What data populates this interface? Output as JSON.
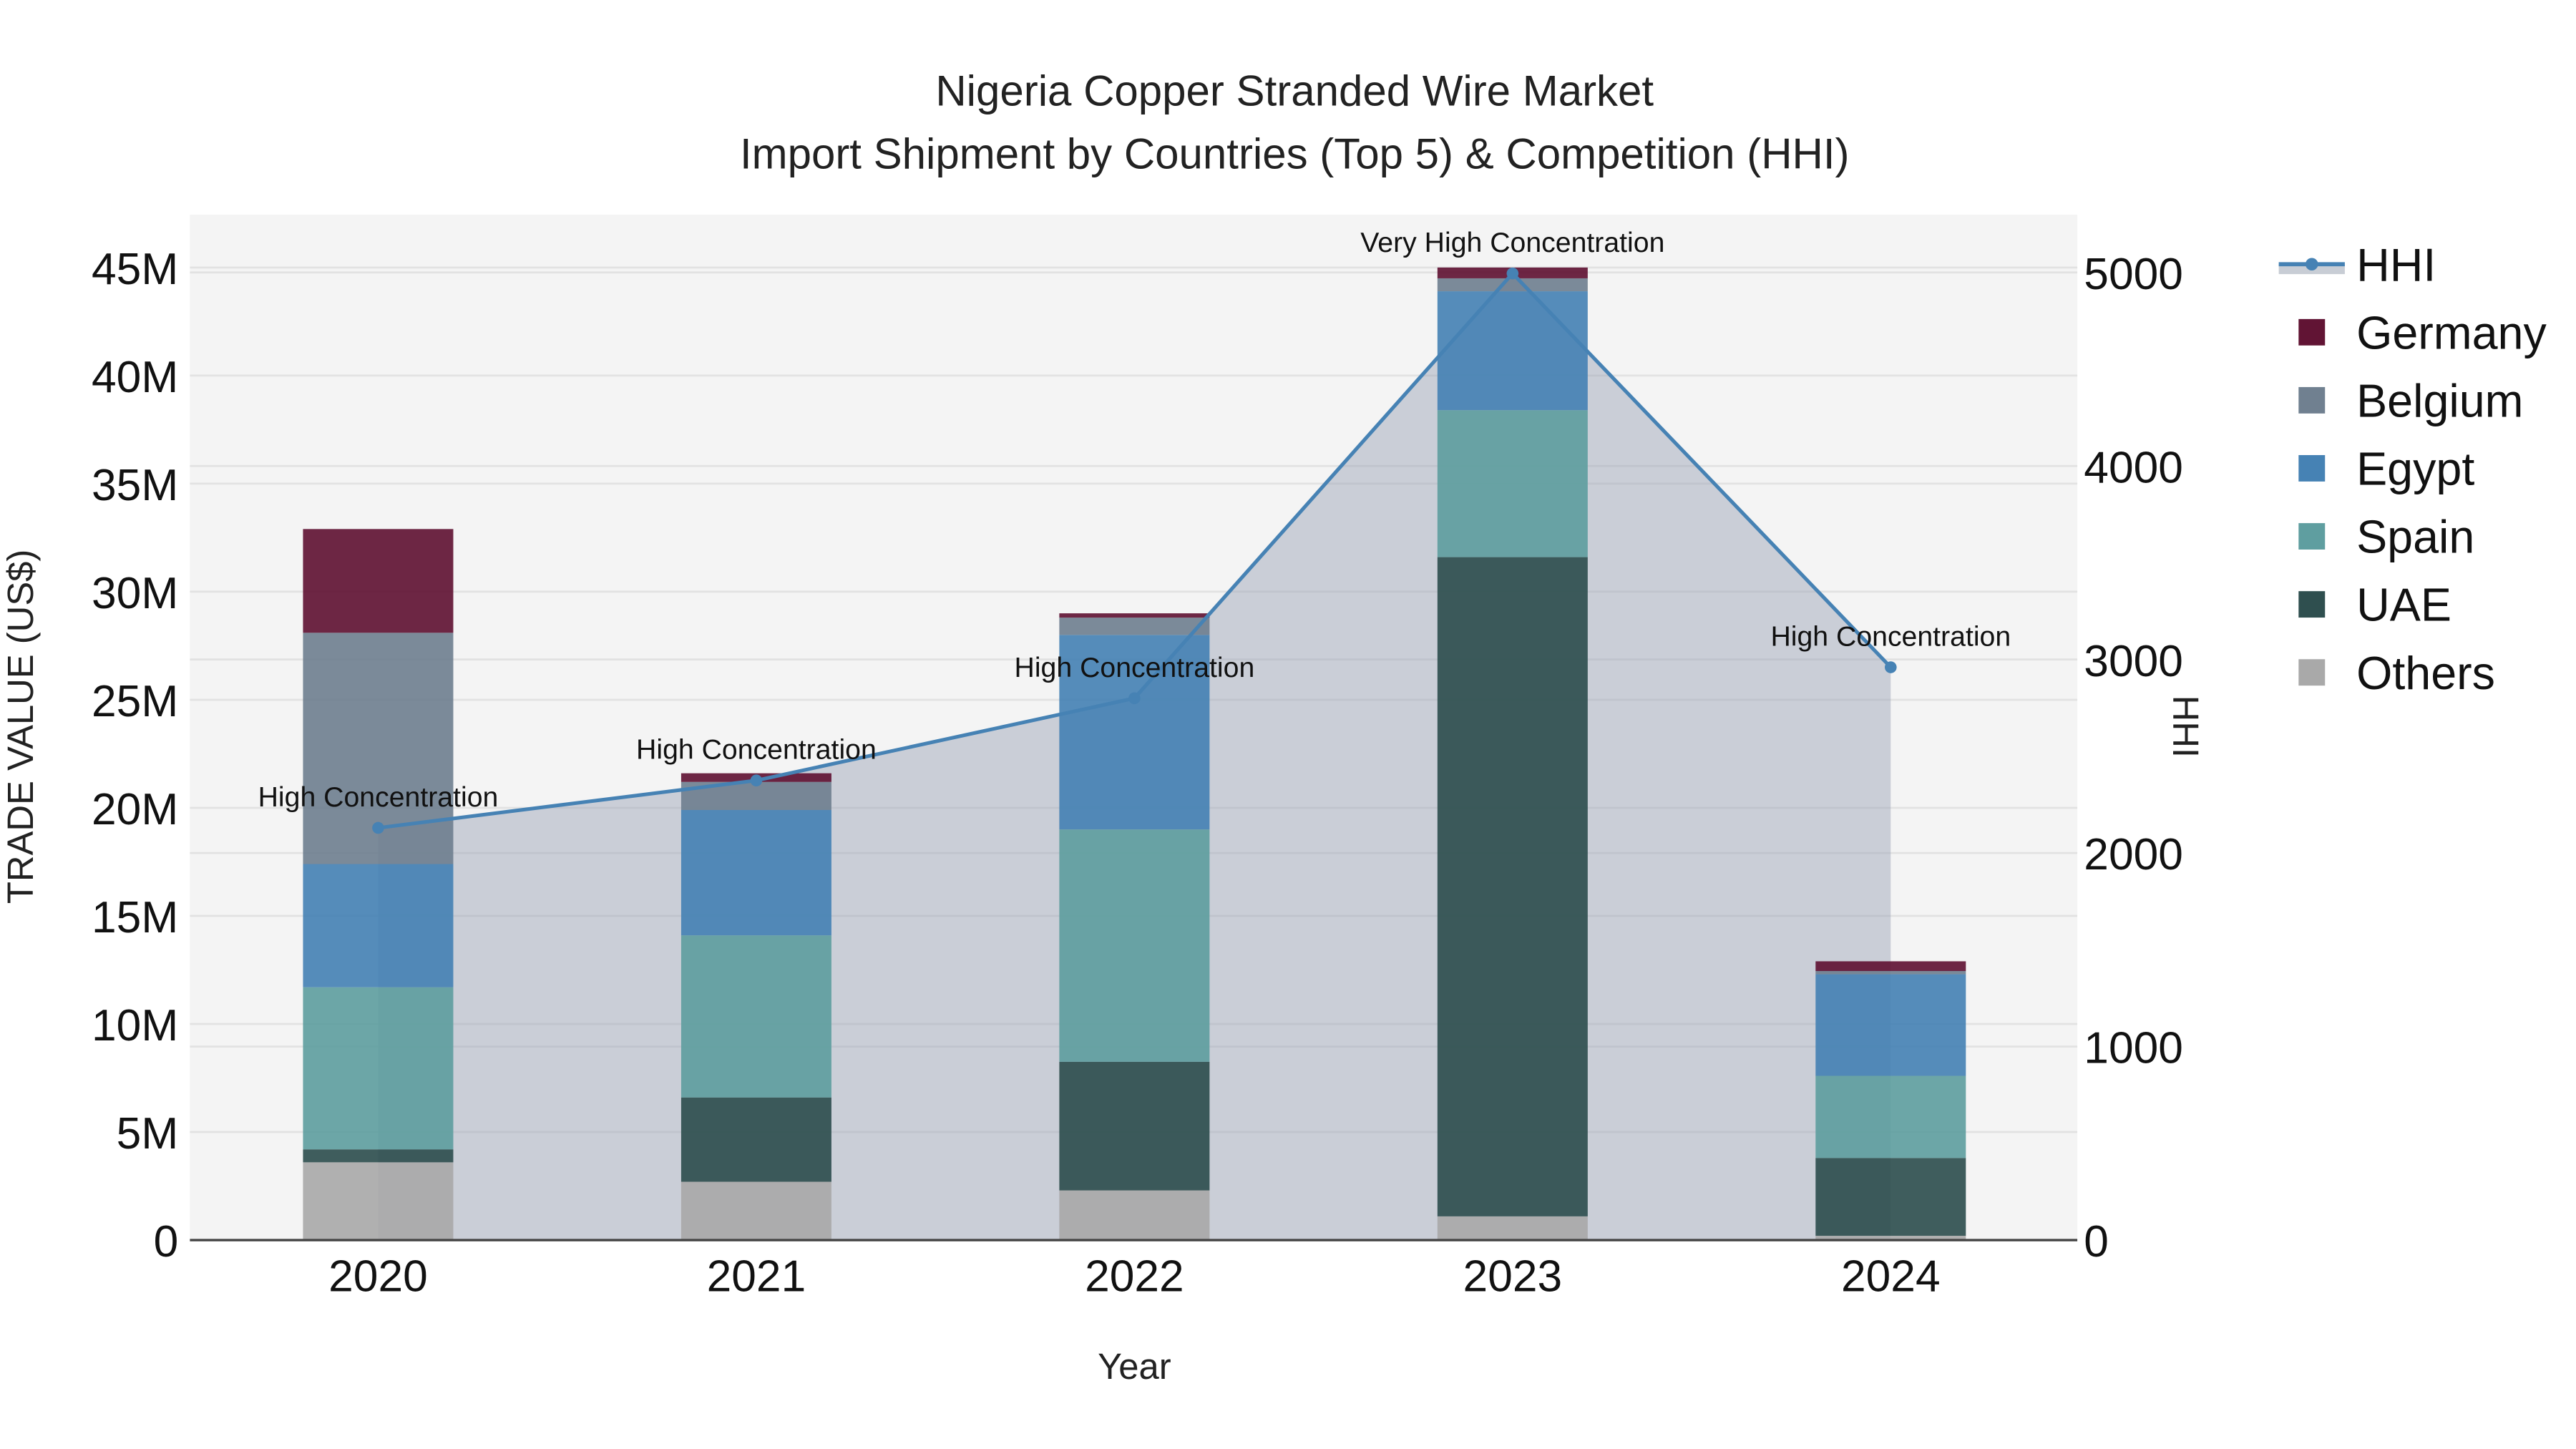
{
  "title": {
    "line1": "Nigeria Copper Stranded Wire Market",
    "line2": "Import Shipment by Countries (Top 5) & Competition (HHI)"
  },
  "axes": {
    "x_title": "Year",
    "y_left_title": "TRADE VALUE (US$)",
    "y_right_title": "HHI",
    "y_left_ticks": [
      "0",
      "5M",
      "10M",
      "15M",
      "20M",
      "25M",
      "30M",
      "35M",
      "40M",
      "45M"
    ],
    "y_right_ticks": [
      "0",
      "1000",
      "2000",
      "3000",
      "4000",
      "5000"
    ],
    "x_ticks": [
      "2020",
      "2021",
      "2022",
      "2023",
      "2024"
    ]
  },
  "legend": [
    {
      "name": "HHI",
      "type": "line",
      "color": "#4682B4"
    },
    {
      "name": "Germany",
      "type": "bar",
      "color": "#611434"
    },
    {
      "name": "Belgium",
      "type": "bar",
      "color": "#708090"
    },
    {
      "name": "Egypt",
      "type": "bar",
      "color": "#4682B4"
    },
    {
      "name": "Spain",
      "type": "bar",
      "color": "#5F9EA0"
    },
    {
      "name": "UAE",
      "type": "bar",
      "color": "#2F4F4F"
    },
    {
      "name": "Others",
      "type": "bar",
      "color": "#A9A9A9"
    }
  ],
  "annotations": [
    "High Concentration",
    "High Concentration",
    "High Concentration",
    "Very High Concentration",
    "High Concentration"
  ],
  "chart_data": {
    "type": "bar",
    "stacked": true,
    "title": "Nigeria Copper Stranded Wire Market — Import Shipment by Countries (Top 5) & Competition (HHI)",
    "xlabel": "Year",
    "ylabel": "TRADE VALUE (US$)",
    "y2label": "HHI",
    "categories": [
      "2020",
      "2021",
      "2022",
      "2023",
      "2024"
    ],
    "ylim": [
      0,
      47500000
    ],
    "y2lim": [
      0,
      5300
    ],
    "grid": true,
    "legend_position": "right",
    "series": [
      {
        "name": "Others",
        "color": "#A9A9A9",
        "values": [
          3600000,
          2700000,
          2300000,
          1100000,
          200000
        ]
      },
      {
        "name": "UAE",
        "color": "#2F4F4F",
        "values": [
          600000,
          3900000,
          5950000,
          30500000,
          3600000
        ]
      },
      {
        "name": "Spain",
        "color": "#5F9EA0",
        "values": [
          7500000,
          7500000,
          10750000,
          6800000,
          3800000
        ]
      },
      {
        "name": "Egypt",
        "color": "#4682B4",
        "values": [
          5700000,
          5800000,
          9000000,
          5500000,
          4700000
        ]
      },
      {
        "name": "Belgium",
        "color": "#708090",
        "values": [
          10700000,
          1300000,
          800000,
          600000,
          150000
        ]
      },
      {
        "name": "Germany",
        "color": "#611434",
        "values": [
          4800000,
          400000,
          200000,
          500000,
          450000
        ]
      }
    ],
    "line_series": {
      "name": "HHI",
      "axis": "y2",
      "color": "#4682B4",
      "fill": "tozeroy",
      "values": [
        2130,
        2375,
        2800,
        4995,
        2960
      ],
      "labels": [
        "High Concentration",
        "High Concentration",
        "High Concentration",
        "Very High Concentration",
        "High Concentration"
      ]
    },
    "totals": [
      32900000,
      21600000,
      29000000,
      45000000,
      12900000
    ]
  }
}
